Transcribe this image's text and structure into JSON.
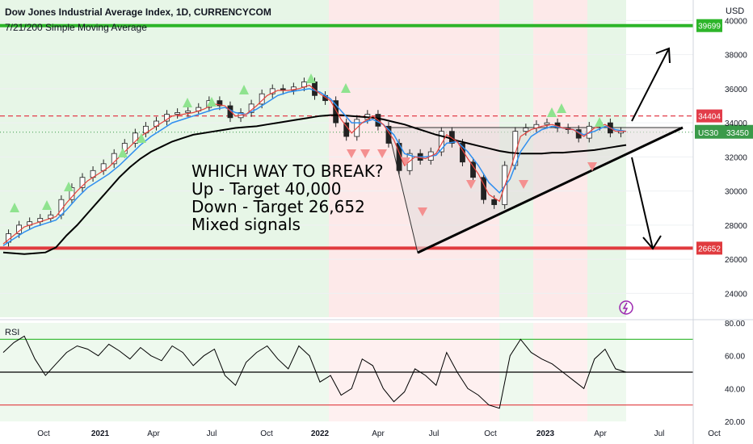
{
  "header": {
    "title": "Dow Jones Industrial Average Index, 1D, CURRENCYCOM",
    "indicator": "7/21/200 Simple Moving Average",
    "currency": "USD"
  },
  "annotation": {
    "lines": [
      "WHICH WAY TO BREAK?",
      "Up - Target 40,000",
      "Down - Target 26,652",
      "Mixed signals"
    ]
  },
  "colors": {
    "up_zone": "#e7f6e7",
    "down_zone": "#fde9e9",
    "target_up": "#2db52a",
    "target_down": "#e03a3e",
    "resistance": "#e23d4a",
    "ma200": "#000000",
    "ma21": "#2f8ff0",
    "ma7": "#e6433e",
    "triangle_fill": "#e4dede",
    "price_tag": "#3a9a49"
  },
  "chart_data": [
    {
      "type": "line",
      "title": "Dow Jones Industrial Average Index, 1D, CURRENCYCOM",
      "x_ticks": [
        "Oct",
        "2021",
        "Apr",
        "Jul",
        "Oct",
        "2022",
        "Apr",
        "Jul",
        "Oct",
        "2023",
        "Apr",
        "Jul",
        "Oct"
      ],
      "y_ticks": [
        24000,
        26000,
        28000,
        30000,
        32000,
        34000,
        36000,
        38000,
        40000
      ],
      "ylim": [
        22600,
        41200
      ],
      "y_unit": "USD",
      "series": [
        {
          "values": [
            27000,
            27500,
            28000,
            28200,
            28400,
            28600,
            29500,
            30200,
            30800,
            31200,
            31600,
            32200,
            32800,
            33400,
            33800,
            34100,
            34500,
            34600,
            34700,
            34900,
            35300,
            35000,
            34300,
            34600,
            35100,
            35700,
            36000,
            35900,
            36100,
            36400,
            35600,
            35300,
            34000,
            33200,
            34200,
            34500,
            33800,
            32800,
            31200,
            32200,
            31800,
            32300,
            33500,
            32800,
            31700,
            30800,
            29500,
            29200,
            31500,
            33500,
            33700,
            33900,
            34000,
            33700,
            33600,
            33100,
            33800,
            34000,
            33400,
            33500
          ]
        },
        {
          "name": "7",
          "values": [
            26900,
            27400,
            27900,
            28100,
            28300,
            28500,
            29300,
            30000,
            30600,
            31000,
            31400,
            32000,
            32600,
            33200,
            33600,
            34000,
            34400,
            34500,
            34600,
            34800,
            35100,
            35000,
            34400,
            34500,
            35000,
            35600,
            35900,
            35900,
            36000,
            36200,
            35700,
            35300,
            34200,
            33400,
            34000,
            34400,
            33900,
            33000,
            31500,
            32000,
            31900,
            32200,
            33300,
            32900,
            31900,
            31000,
            29800,
            29400,
            31200,
            33200,
            33600,
            33800,
            33900,
            33700,
            33600,
            33200,
            33700,
            33900,
            33500,
            33500
          ]
        },
        {
          "name": "21",
          "values": [
            26800,
            27200,
            27600,
            27900,
            28100,
            28300,
            28900,
            29600,
            30200,
            30600,
            31000,
            31500,
            32100,
            32700,
            33200,
            33600,
            34000,
            34200,
            34400,
            34600,
            34800,
            34900,
            34600,
            34500,
            34800,
            35200,
            35600,
            35800,
            35900,
            36000,
            35800,
            35400,
            34700,
            34000,
            34000,
            34200,
            33900,
            33300,
            32200,
            32000,
            32000,
            32100,
            32800,
            32900,
            32300,
            31500,
            30500,
            29900,
            30700,
            32300,
            33200,
            33600,
            33800,
            33700,
            33600,
            33300,
            33500,
            33800,
            33600,
            33500
          ]
        },
        {
          "name": "200",
          "values": [
            26400,
            26350,
            26300,
            26350,
            26400,
            26700,
            27400,
            28000,
            28700,
            29400,
            30100,
            30800,
            31400,
            31900,
            32300,
            32600,
            32900,
            33100,
            33300,
            33400,
            33500,
            33600,
            33700,
            33750,
            33800,
            33900,
            34000,
            34100,
            34200,
            34300,
            34400,
            34450,
            34450,
            34400,
            34350,
            34300,
            34200,
            34050,
            33900,
            33700,
            33500,
            33300,
            33150,
            32950,
            32800,
            32650,
            32500,
            32350,
            32250,
            32200,
            32200,
            32200,
            32250,
            32250,
            32300,
            32350,
            32400,
            32500,
            32600,
            32700
          ]
        }
      ],
      "horizontal_levels": [
        {
          "label": "39699",
          "value": 39699
        },
        {
          "label": "26652",
          "value": 26652
        },
        {
          "label": "34404",
          "value": 34404,
          "style": "dashed"
        }
      ],
      "price_tag": {
        "symbol": "US30",
        "value": "33450"
      }
    },
    {
      "type": "line",
      "title": "RSI",
      "y_ticks": [
        "20.00",
        "40.00",
        "60.00",
        "80.00"
      ],
      "ylim": [
        20,
        80
      ],
      "levels": [
        70,
        50,
        30
      ],
      "series": [
        {
          "values": [
            62,
            68,
            72,
            58,
            48,
            55,
            62,
            66,
            64,
            60,
            67,
            63,
            58,
            65,
            60,
            57,
            66,
            62,
            54,
            60,
            64,
            48,
            42,
            56,
            62,
            66,
            58,
            52,
            66,
            60,
            44,
            48,
            36,
            40,
            58,
            54,
            40,
            32,
            38,
            52,
            48,
            42,
            62,
            50,
            40,
            36,
            30,
            28,
            60,
            70,
            62,
            58,
            55,
            50,
            45,
            40,
            58,
            64,
            52,
            50
          ]
        }
      ]
    }
  ]
}
